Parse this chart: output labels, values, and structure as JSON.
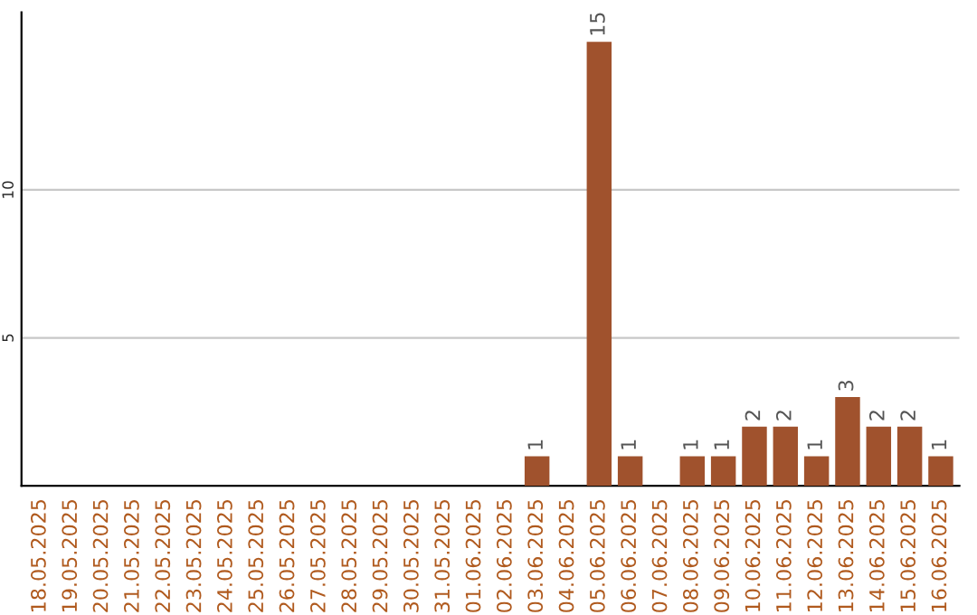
{
  "chart_data": {
    "type": "bar",
    "categories": [
      "18.05.2025",
      "19.05.2025",
      "20.05.2025",
      "21.05.2025",
      "22.05.2025",
      "23.05.2025",
      "24.05.2025",
      "25.05.2025",
      "26.05.2025",
      "27.05.2025",
      "28.05.2025",
      "29.05.2025",
      "30.05.2025",
      "31.05.2025",
      "01.06.2025",
      "02.06.2025",
      "03.06.2025",
      "04.06.2025",
      "05.06.2025",
      "06.06.2025",
      "07.06.2025",
      "08.06.2025",
      "09.06.2025",
      "10.06.2025",
      "11.06.2025",
      "12.06.2025",
      "13.06.2025",
      "14.06.2025",
      "15.06.2025",
      "16.06.2025"
    ],
    "values": [
      0,
      0,
      0,
      0,
      0,
      0,
      0,
      0,
      0,
      0,
      0,
      0,
      0,
      0,
      0,
      0,
      1,
      0,
      15,
      1,
      0,
      1,
      1,
      2,
      2,
      1,
      3,
      2,
      2,
      1
    ],
    "value_labels": [
      null,
      null,
      null,
      null,
      null,
      null,
      null,
      null,
      null,
      null,
      null,
      null,
      null,
      null,
      null,
      null,
      "1",
      null,
      "15",
      "1",
      null,
      "1",
      "1",
      "2",
      "2",
      "1",
      "3",
      "2",
      "2",
      "1"
    ],
    "color": "#a0522d",
    "ylim": [
      0,
      16
    ],
    "yticks": [
      5,
      10
    ],
    "grid": "y"
  }
}
